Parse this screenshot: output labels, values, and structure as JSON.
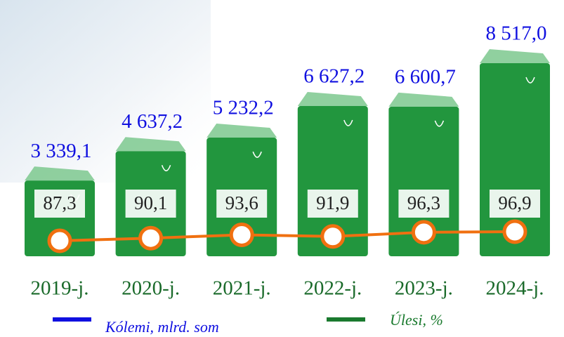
{
  "chart_data": {
    "type": "bag-bar",
    "categories": [
      "2019-j.",
      "2020-j.",
      "2021-j.",
      "2022-j.",
      "2023-j.",
      "2024-j."
    ],
    "series": [
      {
        "name": "Kólemi, mlrd. som",
        "color": "#1010e0",
        "values": [
          3339.1,
          4637.2,
          5232.2,
          6627.2,
          6600.7,
          8517.0
        ],
        "value_labels": [
          "3 339,1",
          "4 637,2",
          "5 232,2",
          "6 627,2",
          "6 600,7",
          "8 517,0"
        ]
      },
      {
        "name": "Úlesi, %",
        "color": "#1a7a2e",
        "values": [
          87.3,
          90.1,
          93.6,
          91.9,
          96.3,
          96.9
        ],
        "value_labels": [
          "87,3",
          "90,1",
          "93,6",
          "91,9",
          "96,3",
          "96,9"
        ]
      }
    ],
    "bar_color": "#22963e",
    "line_color": "#f07010",
    "category_color": "#1a6a2a"
  }
}
